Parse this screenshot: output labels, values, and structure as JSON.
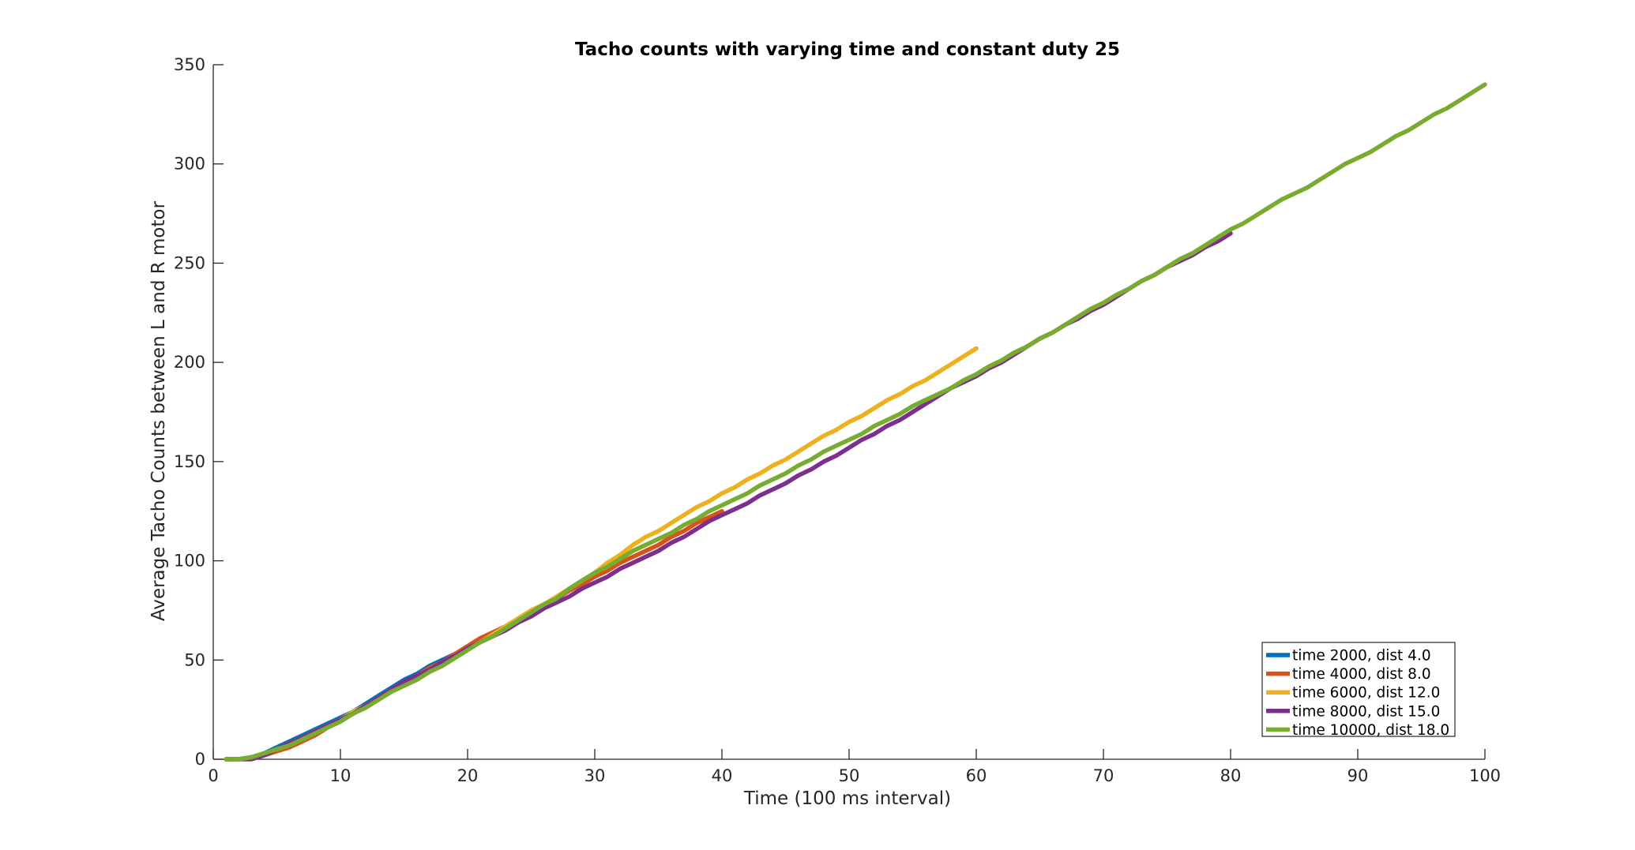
{
  "chart_data": {
    "type": "line",
    "title": "Tacho counts with varying time and constant duty 25",
    "xlabel": "Time (100 ms interval)",
    "ylabel": "Average Tacho Counts between L and R motor",
    "xlim": [
      0,
      100
    ],
    "ylim": [
      0,
      350
    ],
    "xticks": [
      0,
      10,
      20,
      30,
      40,
      50,
      60,
      70,
      80,
      90,
      100
    ],
    "yticks": [
      0,
      50,
      100,
      150,
      200,
      250,
      300,
      350
    ],
    "grid": false,
    "legend_position": "bottom-right",
    "series": [
      {
        "name": "time 2000, dist 4.0",
        "color": "#0072BD",
        "x": [
          1,
          2,
          3,
          4,
          5,
          6,
          7,
          8,
          9,
          10,
          11,
          12,
          13,
          14,
          15,
          16,
          17,
          18,
          19,
          20
        ],
        "y": [
          0,
          0,
          1,
          3,
          6,
          9,
          12,
          15,
          18,
          21,
          24,
          28,
          32,
          36,
          40,
          43,
          47,
          50,
          53,
          56
        ]
      },
      {
        "name": "time 4000, dist 8.0",
        "color": "#D95319",
        "x": [
          1,
          2,
          3,
          4,
          5,
          6,
          7,
          8,
          9,
          10,
          11,
          12,
          13,
          14,
          15,
          16,
          17,
          18,
          19,
          20,
          21,
          22,
          23,
          24,
          25,
          26,
          27,
          28,
          29,
          30,
          31,
          32,
          33,
          34,
          35,
          36,
          37,
          38,
          39,
          40
        ],
        "y": [
          0,
          0,
          1,
          2,
          4,
          6,
          9,
          12,
          16,
          19,
          23,
          27,
          31,
          35,
          39,
          42,
          46,
          49,
          53,
          57,
          61,
          64,
          67,
          71,
          75,
          78,
          81,
          85,
          88,
          92,
          95,
          99,
          102,
          105,
          108,
          112,
          115,
          119,
          122,
          125
        ]
      },
      {
        "name": "time 6000, dist 12.0",
        "color": "#EDB120",
        "x": [
          1,
          2,
          3,
          4,
          5,
          6,
          7,
          8,
          9,
          10,
          11,
          12,
          13,
          14,
          15,
          16,
          17,
          18,
          19,
          20,
          21,
          22,
          23,
          24,
          25,
          26,
          27,
          28,
          29,
          30,
          31,
          32,
          33,
          34,
          35,
          36,
          37,
          38,
          39,
          40,
          41,
          42,
          43,
          44,
          45,
          46,
          47,
          48,
          49,
          50,
          51,
          52,
          53,
          54,
          55,
          56,
          57,
          58,
          59,
          60
        ],
        "y": [
          0,
          0,
          1,
          3,
          5,
          8,
          11,
          14,
          17,
          20,
          24,
          27,
          31,
          35,
          38,
          41,
          45,
          48,
          52,
          56,
          59,
          63,
          67,
          71,
          75,
          78,
          82,
          86,
          90,
          94,
          99,
          103,
          108,
          112,
          115,
          119,
          123,
          127,
          130,
          134,
          137,
          141,
          144,
          148,
          151,
          155,
          159,
          163,
          166,
          170,
          173,
          177,
          181,
          184,
          188,
          191,
          195,
          199,
          203,
          207
        ]
      },
      {
        "name": "time 8000, dist 15.0",
        "color": "#7E2F8E",
        "x": [
          1,
          2,
          3,
          4,
          5,
          6,
          7,
          8,
          9,
          10,
          11,
          12,
          13,
          14,
          15,
          16,
          17,
          18,
          19,
          20,
          21,
          22,
          23,
          24,
          25,
          26,
          27,
          28,
          29,
          30,
          31,
          32,
          33,
          34,
          35,
          36,
          37,
          38,
          39,
          40,
          41,
          42,
          43,
          44,
          45,
          46,
          47,
          48,
          49,
          50,
          51,
          52,
          53,
          54,
          55,
          56,
          57,
          58,
          59,
          60,
          61,
          62,
          63,
          64,
          65,
          66,
          67,
          68,
          69,
          70,
          71,
          72,
          73,
          74,
          75,
          76,
          77,
          78,
          79,
          80
        ],
        "y": [
          0,
          0,
          0,
          2,
          5,
          8,
          11,
          14,
          17,
          20,
          23,
          27,
          31,
          35,
          39,
          42,
          45,
          49,
          52,
          56,
          59,
          62,
          65,
          69,
          72,
          76,
          79,
          82,
          86,
          89,
          92,
          96,
          99,
          102,
          105,
          109,
          112,
          116,
          120,
          123,
          126,
          129,
          133,
          136,
          139,
          143,
          146,
          150,
          153,
          157,
          161,
          164,
          168,
          171,
          175,
          179,
          183,
          187,
          190,
          193,
          197,
          200,
          204,
          208,
          212,
          215,
          219,
          222,
          226,
          229,
          233,
          237,
          241,
          244,
          248,
          251,
          254,
          258,
          261,
          265
        ]
      },
      {
        "name": "time 10000, dist 18.0",
        "color": "#77AC30",
        "x": [
          1,
          2,
          3,
          4,
          5,
          6,
          7,
          8,
          9,
          10,
          11,
          12,
          13,
          14,
          15,
          16,
          17,
          18,
          19,
          20,
          21,
          22,
          23,
          24,
          25,
          26,
          27,
          28,
          29,
          30,
          31,
          32,
          33,
          34,
          35,
          36,
          37,
          38,
          39,
          40,
          41,
          42,
          43,
          44,
          45,
          46,
          47,
          48,
          49,
          50,
          51,
          52,
          53,
          54,
          55,
          56,
          57,
          58,
          59,
          60,
          61,
          62,
          63,
          64,
          65,
          66,
          67,
          68,
          69,
          70,
          71,
          72,
          73,
          74,
          75,
          76,
          77,
          78,
          79,
          80,
          81,
          82,
          83,
          84,
          85,
          86,
          87,
          88,
          89,
          90,
          91,
          92,
          93,
          94,
          95,
          96,
          97,
          98,
          99,
          100
        ],
        "y": [
          0,
          0,
          1,
          3,
          5,
          7,
          10,
          13,
          16,
          19,
          23,
          26,
          30,
          34,
          37,
          40,
          44,
          47,
          51,
          55,
          59,
          62,
          66,
          70,
          74,
          78,
          81,
          86,
          90,
          94,
          97,
          101,
          105,
          108,
          111,
          114,
          118,
          121,
          125,
          128,
          131,
          134,
          138,
          141,
          144,
          148,
          151,
          155,
          158,
          161,
          164,
          168,
          171,
          174,
          178,
          181,
          184,
          187,
          191,
          194,
          198,
          201,
          205,
          208,
          212,
          215,
          219,
          223,
          227,
          230,
          234,
          237,
          241,
          244,
          248,
          252,
          255,
          259,
          263,
          267,
          270,
          274,
          278,
          282,
          285,
          288,
          292,
          296,
          300,
          303,
          306,
          310,
          314,
          317,
          321,
          325,
          328,
          332,
          336,
          340
        ]
      }
    ]
  }
}
